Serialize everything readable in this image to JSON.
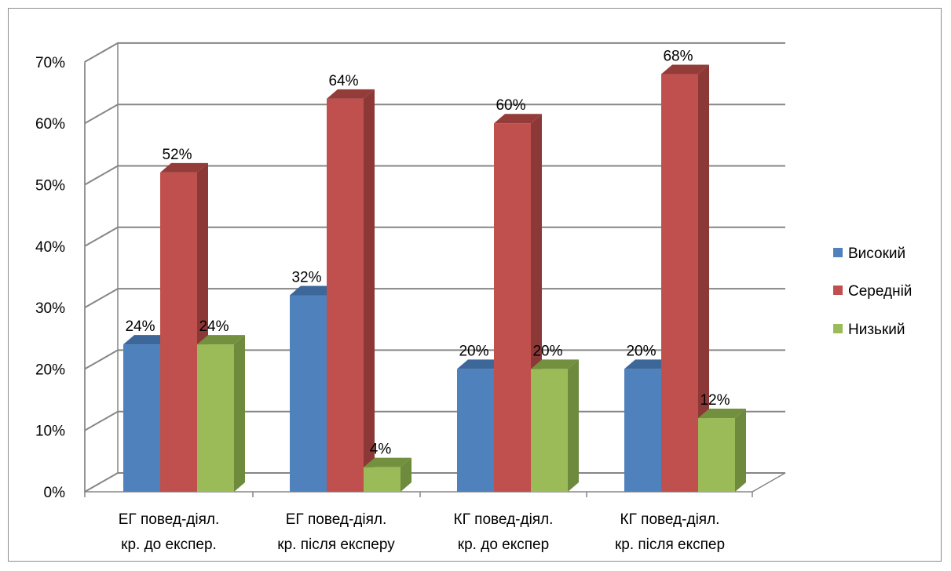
{
  "chart_data": {
    "type": "bar",
    "variant": "3d-clustered-column",
    "categories": [
      [
        "ЕГ повед-діял.",
        "кр. до експер."
      ],
      [
        "ЕГ повед-діял.",
        "кр. після експеру"
      ],
      [
        "КГ повед-діял.",
        "кр. до експер"
      ],
      [
        "КГ повед-діял.",
        "кр. після експер"
      ]
    ],
    "series": [
      {
        "name": "Високий",
        "values": [
          24,
          32,
          20,
          20
        ],
        "labels": [
          "24%",
          "32%",
          "20%",
          "20%"
        ],
        "color": "#4F81BD",
        "side": "#3A6394",
        "top": "#3D6699"
      },
      {
        "name": "Середній",
        "values": [
          52,
          64,
          60,
          68
        ],
        "labels": [
          "52%",
          "64%",
          "60%",
          "68%"
        ],
        "color": "#C0504D",
        "side": "#8C3836",
        "top": "#943C39"
      },
      {
        "name": "Низький",
        "values": [
          24,
          4,
          20,
          12
        ],
        "labels": [
          "24%",
          "4%",
          "20%",
          "12%"
        ],
        "color": "#9BBB59",
        "side": "#6E8A3D",
        "top": "#73903F"
      }
    ],
    "yticks": [
      "0%",
      "10%",
      "20%",
      "30%",
      "40%",
      "50%",
      "60%",
      "70%"
    ],
    "ylim": [
      0,
      70
    ],
    "grid": true,
    "legend_position": "right",
    "title": "",
    "xlabel": "",
    "ylabel": ""
  }
}
